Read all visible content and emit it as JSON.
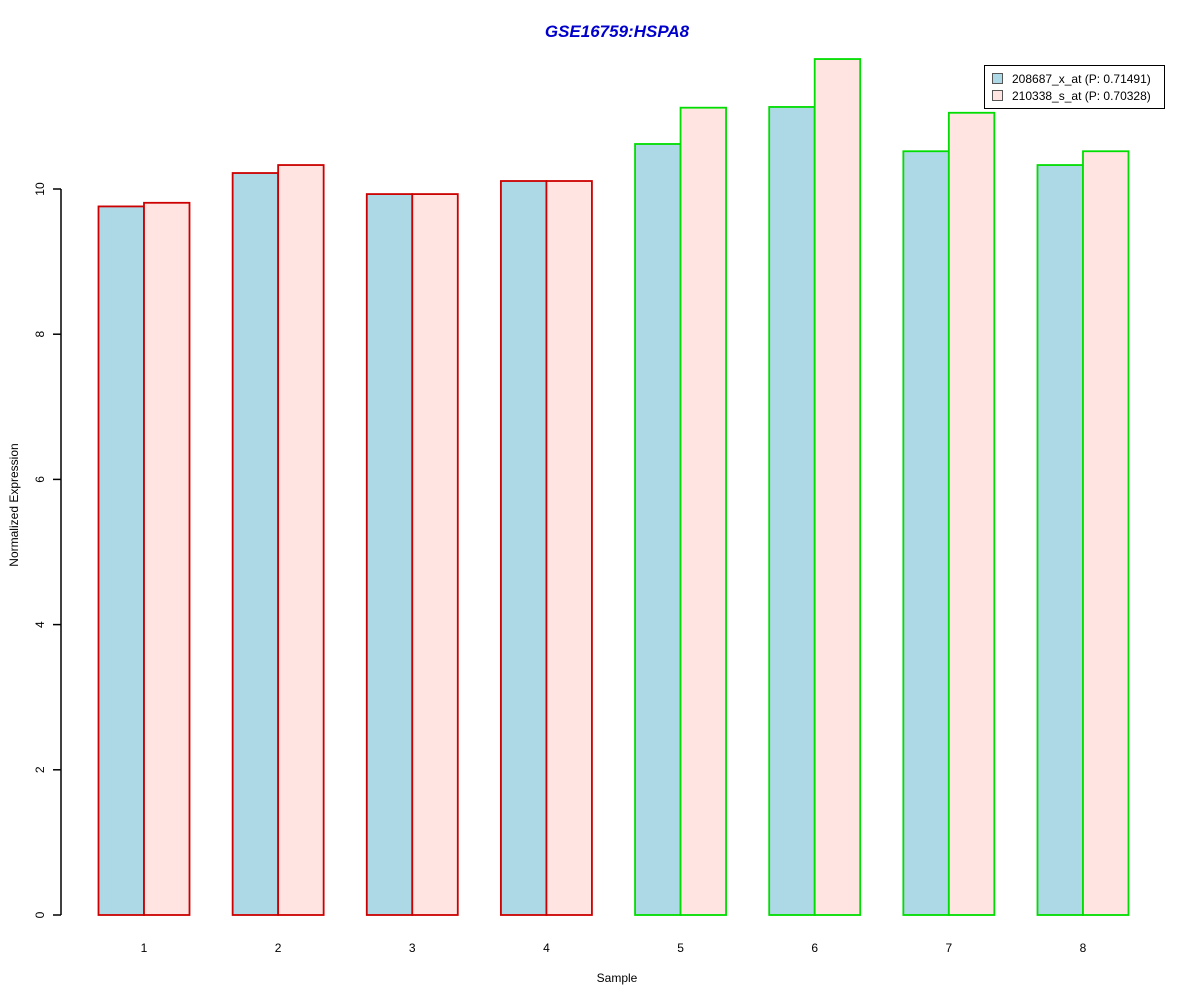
{
  "title": {
    "text": "GSE16759:HSPA8",
    "color": "#0000CC"
  },
  "chart_data": {
    "type": "bar",
    "title": "GSE16759:HSPA8",
    "categories": [
      "1",
      "2",
      "3",
      "4",
      "5",
      "6",
      "7",
      "8"
    ],
    "series": [
      {
        "name": "208687_x_at (P: 0.71491)",
        "fill": "#ADD8E6",
        "values": [
          9.76,
          10.22,
          9.93,
          10.11,
          10.62,
          11.13,
          10.52,
          10.33
        ]
      },
      {
        "name": "210338_s_at (P: 0.70328)",
        "fill": "#FFE4E1",
        "values": [
          9.81,
          10.33,
          9.93,
          10.11,
          11.12,
          11.79,
          11.05,
          10.52
        ]
      }
    ],
    "group_border_colors": [
      "#CC0000",
      "#CC0000",
      "#CC0000",
      "#CC0000",
      "#00DD00",
      "#00DD00",
      "#00DD00",
      "#00DD00"
    ],
    "xlabel": "Sample",
    "ylabel": "Normalized Expression",
    "yticks": [
      0,
      2,
      4,
      6,
      8,
      10
    ],
    "ylim": [
      0,
      11.9
    ],
    "grid": false,
    "legend_position": "top-right"
  },
  "legend": {
    "entries": [
      {
        "label": "208687_x_at (P: 0.71491)",
        "swatch": "#ADD8E6"
      },
      {
        "label": "210338_s_at (P: 0.70328)",
        "swatch": "#FFE4E1"
      }
    ]
  }
}
